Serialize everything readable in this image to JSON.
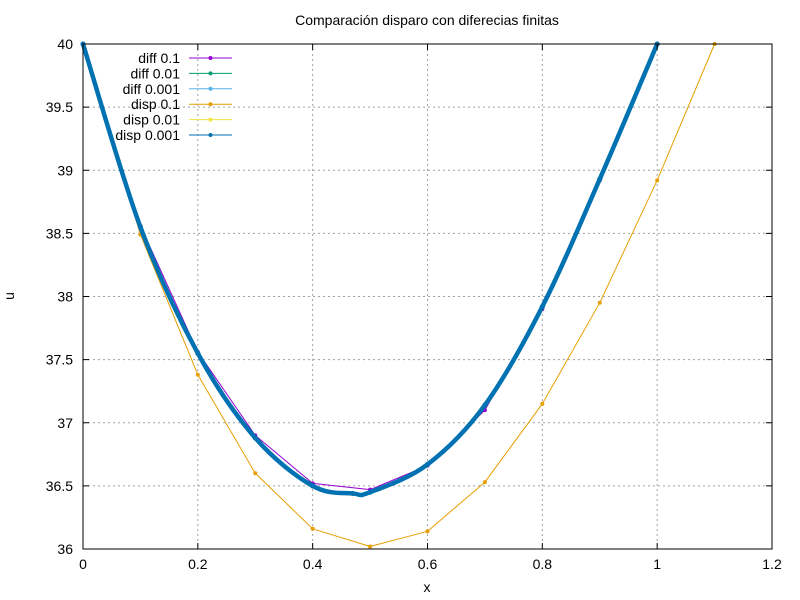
{
  "chart_data": {
    "type": "line",
    "title": "Comparación disparo con diferecias finitas",
    "xlabel": "x",
    "ylabel": "u",
    "xlim": [
      0,
      1.2
    ],
    "ylim": [
      36,
      40
    ],
    "xticks": [
      0,
      0.2,
      0.4,
      0.6,
      0.8,
      1,
      1.2
    ],
    "xtick_labels": [
      "0",
      "0.2",
      "0.4",
      "0.6",
      "0.8",
      "1",
      "1.2"
    ],
    "yticks": [
      36,
      36.5,
      37,
      37.5,
      38,
      38.5,
      39,
      39.5,
      40
    ],
    "ytick_labels": [
      "36",
      "36.5",
      "37",
      "37.5",
      "38",
      "38.5",
      "39",
      "39.5",
      "40"
    ],
    "grid": true,
    "legend_position": "top-left",
    "series": [
      {
        "name": "diff 0.1",
        "color": "#9400d3",
        "x": [
          0,
          0.1,
          0.2,
          0.3,
          0.4,
          0.5,
          0.6,
          0.7,
          0.8,
          0.9,
          1.0
        ],
        "values": [
          40,
          38.56,
          37.56,
          36.9,
          36.52,
          36.47,
          36.66,
          37.1,
          37.9,
          38.92,
          40
        ]
      },
      {
        "name": "diff 0.01",
        "color": "#009e73",
        "x": [
          0,
          0.1,
          0.2,
          0.3,
          0.4,
          0.47,
          0.5,
          0.6,
          0.7,
          0.8,
          0.9,
          1.0
        ],
        "values": [
          40,
          38.55,
          37.55,
          36.88,
          36.5,
          36.44,
          36.45,
          36.67,
          37.14,
          37.92,
          38.93,
          40
        ]
      },
      {
        "name": "diff 0.001",
        "color": "#56b4e9",
        "x": [
          0,
          0.1,
          0.2,
          0.3,
          0.4,
          0.47,
          0.5,
          0.6,
          0.7,
          0.8,
          0.9,
          1.0
        ],
        "values": [
          40,
          38.55,
          37.55,
          36.88,
          36.5,
          36.44,
          36.45,
          36.67,
          37.14,
          37.92,
          38.93,
          40
        ]
      },
      {
        "name": "disp 0.1",
        "color": "#e69f00",
        "x": [
          0,
          0.1,
          0.2,
          0.3,
          0.4,
          0.5,
          0.6,
          0.7,
          0.8,
          0.9,
          1.0,
          1.1
        ],
        "values": [
          40,
          38.49,
          37.38,
          36.6,
          36.16,
          36.02,
          36.14,
          36.53,
          37.15,
          37.95,
          38.92,
          40
        ]
      },
      {
        "name": "disp 0.01",
        "color": "#f0e442",
        "x": [
          0,
          0.1,
          0.2,
          0.3,
          0.4,
          0.47,
          0.5,
          0.6,
          0.7,
          0.8,
          0.9,
          1.0
        ],
        "values": [
          40,
          38.55,
          37.55,
          36.88,
          36.5,
          36.44,
          36.45,
          36.67,
          37.14,
          37.92,
          38.93,
          40
        ]
      },
      {
        "name": "disp 0.001",
        "color": "#0072b2",
        "x": [
          0,
          0.1,
          0.2,
          0.3,
          0.4,
          0.47,
          0.5,
          0.6,
          0.7,
          0.8,
          0.9,
          1.0
        ],
        "values": [
          40,
          38.55,
          37.55,
          36.88,
          36.5,
          36.44,
          36.45,
          36.67,
          37.14,
          37.92,
          38.93,
          40
        ]
      }
    ]
  }
}
